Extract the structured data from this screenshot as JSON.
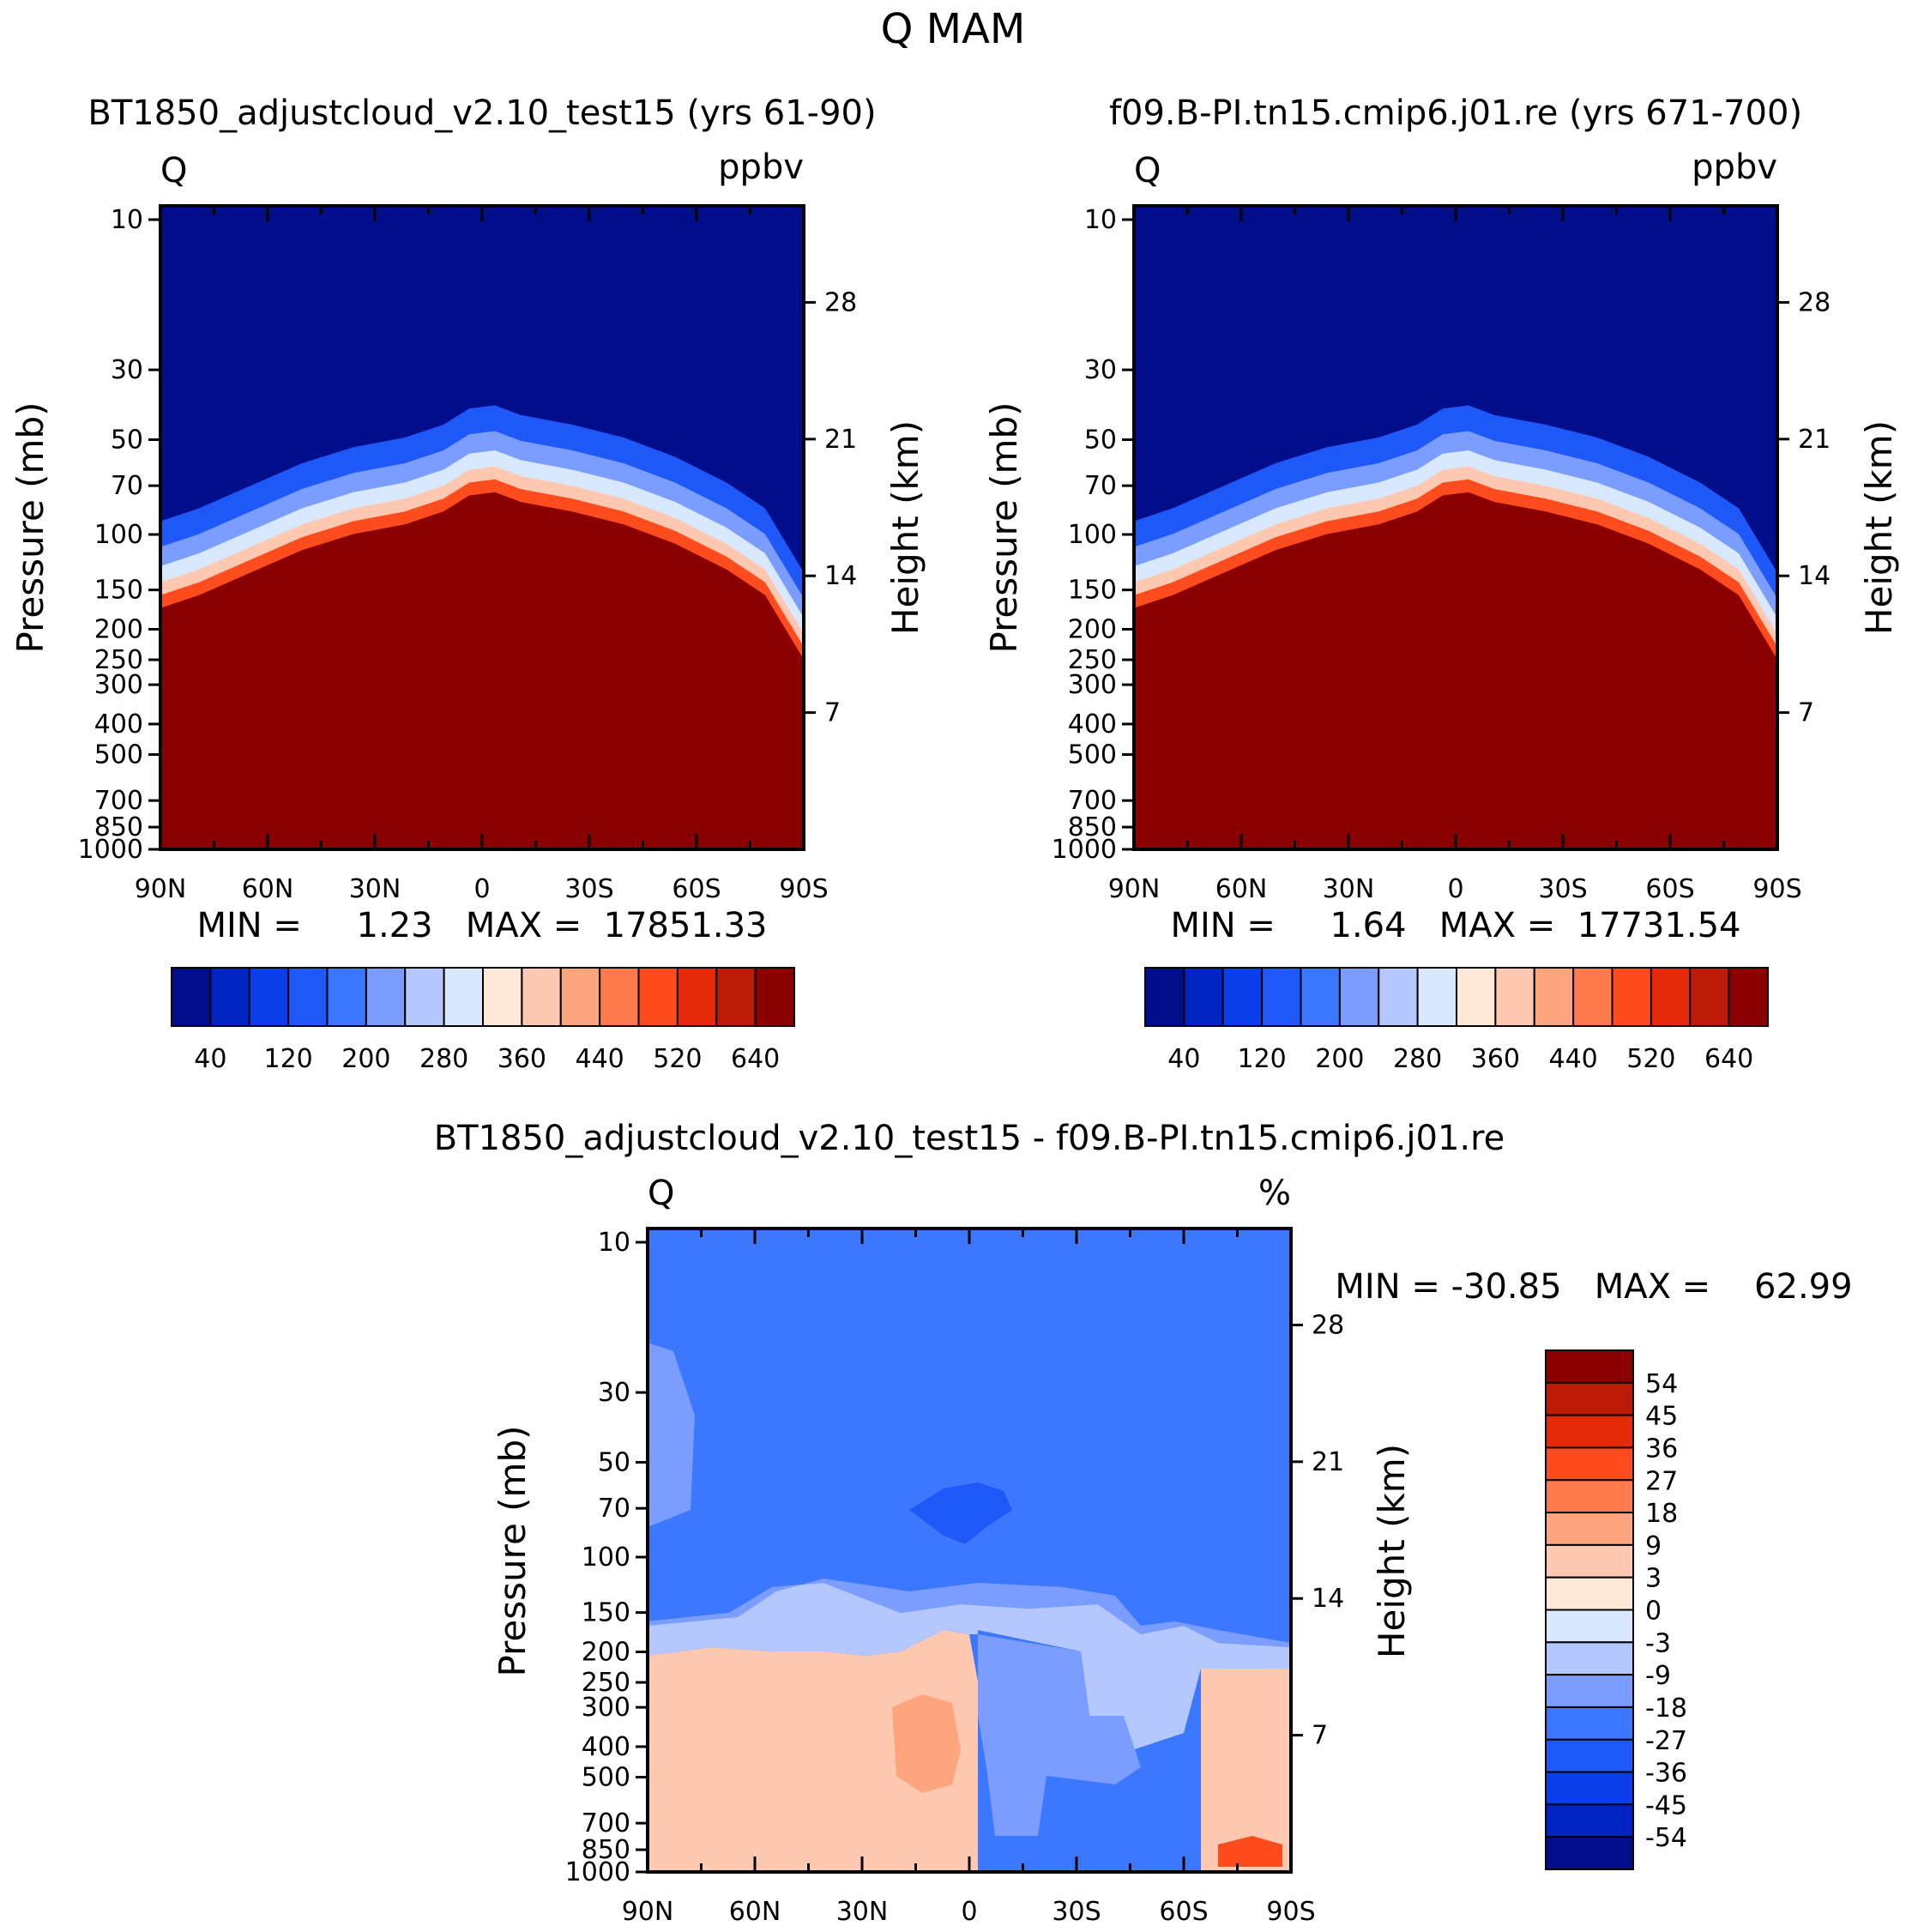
{
  "figure_title": "Q  MAM",
  "colors": {
    "seq": [
      "#000e8c",
      "#0024c4",
      "#0a3ee8",
      "#1f58f8",
      "#3b78ff",
      "#7a9dff",
      "#b4c8ff",
      "#d8e8ff",
      "#ffe8d8",
      "#ffc8b0",
      "#ffa57e",
      "#ff7a4c",
      "#ff4c1e",
      "#e42a08",
      "#bc1c05",
      "#8a0000"
    ],
    "diff": [
      "#000e8c",
      "#0024c4",
      "#0a3ee8",
      "#1f58f8",
      "#3b78ff",
      "#7a9dff",
      "#b4c8ff",
      "#d8e8ff",
      "#ffe8d8",
      "#ffc8b0",
      "#ffa57e",
      "#ff7a4c",
      "#ff4c1e",
      "#e42a08",
      "#bc1c05",
      "#8a0000"
    ]
  },
  "chart_data": [
    {
      "type": "heatmap",
      "title": "BT1850_adjustcloud_v2.10_test15 (yrs 61-90)",
      "left_label": "Q",
      "right_label": "ppbv",
      "xlabel": "",
      "ylabel": "Pressure (mb)",
      "y2label": "Height (km)",
      "x_ticks": [
        "90N",
        "60N",
        "30N",
        "0",
        "30S",
        "60S",
        "90S"
      ],
      "y_ticks": [
        "10",
        "30",
        "50",
        "70",
        "100",
        "150",
        "200",
        "250",
        "300",
        "400",
        "500",
        "700",
        "850",
        "1000"
      ],
      "y2_ticks": [
        "28",
        "21",
        "14",
        "7"
      ],
      "stats": "MIN =     1.23   MAX =  17851.33",
      "colorbar": {
        "labels": [
          "40",
          "120",
          "200",
          "280",
          "360",
          "440",
          "520",
          "640"
        ]
      }
    },
    {
      "type": "heatmap",
      "title": "f09.B-PI.tn15.cmip6.j01.re (yrs 671-700)",
      "left_label": "Q",
      "right_label": "ppbv",
      "xlabel": "",
      "ylabel": "Pressure (mb)",
      "y2label": "Height (km)",
      "x_ticks": [
        "90N",
        "60N",
        "30N",
        "0",
        "30S",
        "60S",
        "90S"
      ],
      "y_ticks": [
        "10",
        "30",
        "50",
        "70",
        "100",
        "150",
        "200",
        "250",
        "300",
        "400",
        "500",
        "700",
        "850",
        "1000"
      ],
      "y2_ticks": [
        "28",
        "21",
        "14",
        "7"
      ],
      "stats": "MIN =     1.64   MAX =  17731.54",
      "colorbar": {
        "labels": [
          "40",
          "120",
          "200",
          "280",
          "360",
          "440",
          "520",
          "640"
        ]
      }
    },
    {
      "type": "heatmap",
      "title": "BT1850_adjustcloud_v2.10_test15 - f09.B-PI.tn15.cmip6.j01.re",
      "left_label": "Q",
      "right_label": "%",
      "xlabel": "",
      "ylabel": "Pressure (mb)",
      "y2label": "Height (km)",
      "x_ticks": [
        "90N",
        "60N",
        "30N",
        "0",
        "30S",
        "60S",
        "90S"
      ],
      "y_ticks": [
        "10",
        "30",
        "50",
        "70",
        "100",
        "150",
        "200",
        "250",
        "300",
        "400",
        "500",
        "700",
        "850",
        "1000"
      ],
      "y2_ticks": [
        "28",
        "21",
        "14",
        "7"
      ],
      "stats": "MIN = -30.85   MAX =    62.99",
      "colorbar": {
        "labels": [
          "54",
          "45",
          "36",
          "27",
          "18",
          "9",
          "3",
          "0",
          "-3",
          "-9",
          "-18",
          "-27",
          "-36",
          "-45",
          "-54"
        ]
      }
    }
  ]
}
